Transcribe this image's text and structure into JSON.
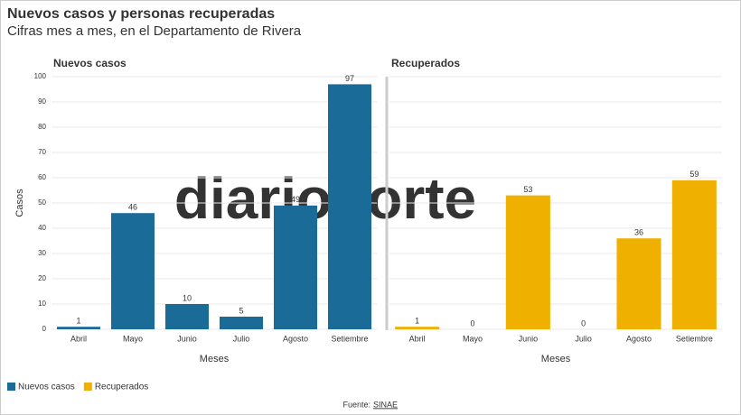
{
  "chart_data": {
    "type": "bar",
    "title": "Nuevos casos y personas recuperadas",
    "subtitle": "Cifras mes a mes, en el Departamento de Rivera",
    "y_label": "Casos",
    "x_label": "Meses",
    "categories": [
      "Abril",
      "Mayo",
      "Junio",
      "Julio",
      "Agosto",
      "Setiembre"
    ],
    "series": [
      {
        "name": "Nuevos casos",
        "color": "#1b6b99",
        "values": [
          1,
          46,
          10,
          5,
          49,
          97
        ]
      },
      {
        "name": "Recuperados",
        "color": "#f0b000",
        "values": [
          1,
          0,
          53,
          0,
          36,
          59
        ]
      }
    ],
    "ylim": [
      0,
      100
    ],
    "yticks": [
      0,
      10,
      20,
      30,
      40,
      50,
      60,
      70,
      80,
      90,
      100
    ],
    "grid": true,
    "watermark": "diarionorte",
    "source_label": "Fuente:",
    "source": "SINAE"
  }
}
